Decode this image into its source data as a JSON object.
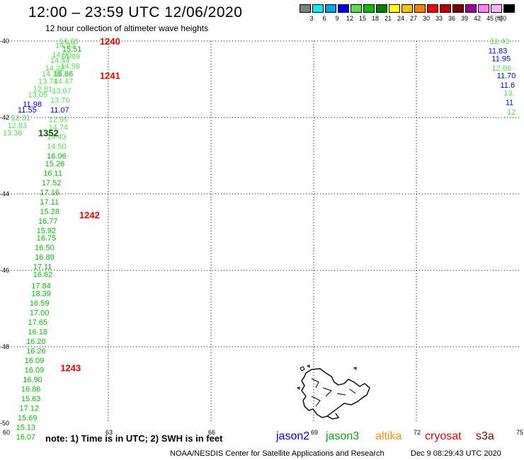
{
  "header": {
    "title": "12:00 – 23:59 UTC 12/06/2020",
    "subtitle": "12 hour collection of altimeter wave heights"
  },
  "legend": {
    "unit": "(ft)",
    "items": [
      {
        "color": "#808080",
        "label": "3"
      },
      {
        "color": "#00f0f0",
        "label": "6"
      },
      {
        "color": "#00a0ff",
        "label": "9"
      },
      {
        "color": "#0000e0",
        "label": "12"
      },
      {
        "color": "#50e050",
        "label": "15"
      },
      {
        "color": "#00c000",
        "label": "18"
      },
      {
        "color": "#008000",
        "label": "21"
      },
      {
        "color": "#ffff00",
        "label": "24"
      },
      {
        "color": "#ffc000",
        "label": "27"
      },
      {
        "color": "#ff8000",
        "label": "30"
      },
      {
        "color": "#ff0000",
        "label": "33"
      },
      {
        "color": "#c00000",
        "label": "36"
      },
      {
        "color": "#800000",
        "label": "39"
      },
      {
        "color": "#a000a0",
        "label": "42"
      },
      {
        "color": "#ff80ff",
        "label": "45"
      },
      {
        "color": "#ffb0ff",
        "label": "70"
      },
      {
        "color": "#000000",
        "label": ""
      }
    ]
  },
  "chart_data": {
    "type": "scatter",
    "lon_ticks": [
      60,
      63,
      66,
      69,
      72,
      75
    ],
    "lat_ticks": [
      -40,
      -42,
      -44,
      -46,
      -48,
      -50
    ],
    "lon_range": [
      60,
      75
    ],
    "lat_range": [
      -50,
      -40
    ],
    "time_labels": [
      {
        "text": "1240",
        "lon": 62.75,
        "lat": -40.0,
        "color": "#ee0000"
      },
      {
        "text": "1241",
        "lon": 62.75,
        "lat": -40.9,
        "color": "#ee0000"
      },
      {
        "text": "1242",
        "lon": 62.15,
        "lat": -44.55,
        "color": "#ee0000"
      },
      {
        "text": "1243",
        "lon": 61.6,
        "lat": -48.55,
        "color": "#ee0000"
      },
      {
        "text": "1352",
        "lon": 60.95,
        "lat": -42.4,
        "color": "#006000"
      }
    ],
    "series": [
      {
        "name": "jason3",
        "points": [
          {
            "lon": 61.8,
            "lat": -40.0,
            "v": "14.78",
            "c": "#50e050"
          },
          {
            "lon": 61.7,
            "lat": -40.1,
            "v": "14.93",
            "c": "#50e050"
          },
          {
            "lon": 61.9,
            "lat": -40.2,
            "v": "15.51",
            "c": "#00c000"
          },
          {
            "lon": 61.6,
            "lat": -40.35,
            "v": "14.90",
            "c": "#50e050"
          },
          {
            "lon": 61.85,
            "lat": -40.4,
            "v": "14.89",
            "c": "#50e050"
          },
          {
            "lon": 61.55,
            "lat": -40.5,
            "v": "14.44",
            "c": "#50e050"
          },
          {
            "lon": 61.85,
            "lat": -40.65,
            "v": "14.98",
            "c": "#50e050"
          },
          {
            "lon": 61.4,
            "lat": -40.7,
            "v": "14.22",
            "c": "#50e050"
          },
          {
            "lon": 61.65,
            "lat": -40.85,
            "v": "16.86",
            "c": "#00c000"
          },
          {
            "lon": 61.3,
            "lat": -40.85,
            "v": "14.10",
            "c": "#50e050"
          },
          {
            "lon": 61.2,
            "lat": -41.05,
            "v": "13.74",
            "c": "#50e050"
          },
          {
            "lon": 61.65,
            "lat": -41.05,
            "v": "14.47",
            "c": "#50e050"
          },
          {
            "lon": 61.05,
            "lat": -41.25,
            "v": "12.81",
            "c": "#50e050"
          },
          {
            "lon": 61.6,
            "lat": -41.3,
            "v": "13.07",
            "c": "#50e050"
          },
          {
            "lon": 60.9,
            "lat": -41.4,
            "v": "13.05",
            "c": "#50e050"
          },
          {
            "lon": 61.55,
            "lat": -41.55,
            "v": "13.70",
            "c": "#50e050"
          },
          {
            "lon": 60.75,
            "lat": -41.65,
            "v": "11.98",
            "c": "#0000e0"
          },
          {
            "lon": 61.55,
            "lat": -41.8,
            "v": "11.07",
            "c": "#0000e0"
          },
          {
            "lon": 60.6,
            "lat": -41.8,
            "v": "11.55",
            "c": "#0000e0"
          },
          {
            "lon": 60.4,
            "lat": -42.0,
            "v": "12.31",
            "c": "#50e050"
          },
          {
            "lon": 61.5,
            "lat": -42.05,
            "v": "12.95",
            "c": "#50e050"
          },
          {
            "lon": 60.3,
            "lat": -42.2,
            "v": "12.83",
            "c": "#50e050"
          },
          {
            "lon": 61.5,
            "lat": -42.25,
            "v": "14.74",
            "c": "#50e050"
          },
          {
            "lon": 60.15,
            "lat": -42.4,
            "v": "13.36",
            "c": "#50e050"
          },
          {
            "lon": 61.45,
            "lat": -42.5,
            "v": "14.43",
            "c": "#50e050"
          },
          {
            "lon": 61.45,
            "lat": -42.75,
            "v": "14.50",
            "c": "#50e050"
          },
          {
            "lon": 61.45,
            "lat": -43.0,
            "v": "16.06",
            "c": "#00c000"
          },
          {
            "lon": 61.4,
            "lat": -43.2,
            "v": "15.26",
            "c": "#00c000"
          },
          {
            "lon": 61.35,
            "lat": -43.45,
            "v": "16.11",
            "c": "#00c000"
          },
          {
            "lon": 61.3,
            "lat": -43.7,
            "v": "17.52",
            "c": "#00c000"
          },
          {
            "lon": 61.25,
            "lat": -43.95,
            "v": "17.16",
            "c": "#00c000"
          },
          {
            "lon": 61.25,
            "lat": -44.2,
            "v": "17.11",
            "c": "#00c000"
          },
          {
            "lon": 61.25,
            "lat": -44.45,
            "v": "15.28",
            "c": "#00c000"
          },
          {
            "lon": 61.2,
            "lat": -44.7,
            "v": "16.77",
            "c": "#00c000"
          },
          {
            "lon": 61.15,
            "lat": -44.95,
            "v": "15.92",
            "c": "#00c000"
          },
          {
            "lon": 61.15,
            "lat": -45.15,
            "v": "16.75",
            "c": "#00c000"
          },
          {
            "lon": 61.1,
            "lat": -45.4,
            "v": "16.50",
            "c": "#00c000"
          },
          {
            "lon": 61.1,
            "lat": -45.65,
            "v": "16.89",
            "c": "#00c000"
          },
          {
            "lon": 61.05,
            "lat": -45.9,
            "v": "17.11",
            "c": "#00c000"
          },
          {
            "lon": 61.05,
            "lat": -46.1,
            "v": "16.62",
            "c": "#00c000"
          },
          {
            "lon": 61.0,
            "lat": -46.4,
            "v": "17.84",
            "c": "#00c000"
          },
          {
            "lon": 61.0,
            "lat": -46.6,
            "v": "18.39",
            "c": "#00c000"
          },
          {
            "lon": 60.95,
            "lat": -46.85,
            "v": "16.59",
            "c": "#00c000"
          },
          {
            "lon": 60.95,
            "lat": -47.1,
            "v": "17.00",
            "c": "#00c000"
          },
          {
            "lon": 60.9,
            "lat": -47.35,
            "v": "17.65",
            "c": "#00c000"
          },
          {
            "lon": 60.9,
            "lat": -47.6,
            "v": "16.18",
            "c": "#00c000"
          },
          {
            "lon": 60.85,
            "lat": -47.85,
            "v": "16.20",
            "c": "#00c000"
          },
          {
            "lon": 60.85,
            "lat": -48.1,
            "v": "16.26",
            "c": "#00c000"
          },
          {
            "lon": 60.8,
            "lat": -48.35,
            "v": "16.09",
            "c": "#00c000"
          },
          {
            "lon": 60.8,
            "lat": -48.6,
            "v": "16.09",
            "c": "#00c000"
          },
          {
            "lon": 60.75,
            "lat": -48.85,
            "v": "16.90",
            "c": "#00c000"
          },
          {
            "lon": 60.7,
            "lat": -49.1,
            "v": "16.86",
            "c": "#00c000"
          },
          {
            "lon": 60.7,
            "lat": -49.35,
            "v": "15.63",
            "c": "#00c000"
          },
          {
            "lon": 60.65,
            "lat": -49.6,
            "v": "17.12",
            "c": "#00c000"
          },
          {
            "lon": 60.6,
            "lat": -49.85,
            "v": "15.69",
            "c": "#00c000"
          },
          {
            "lon": 60.55,
            "lat": -50.1,
            "v": "15.13",
            "c": "#00c000"
          },
          {
            "lon": 60.55,
            "lat": -50.35,
            "v": "16.07",
            "c": "#00c000"
          }
        ]
      },
      {
        "name": "jason2",
        "points": [
          {
            "lon": 74.4,
            "lat": -40.0,
            "v": "12.43",
            "c": "#50e050"
          },
          {
            "lon": 74.35,
            "lat": -40.25,
            "v": "11.83",
            "c": "#0000e0"
          },
          {
            "lon": 74.45,
            "lat": -40.45,
            "v": "11.95",
            "c": "#0000e0"
          },
          {
            "lon": 74.45,
            "lat": -40.7,
            "v": "12.86",
            "c": "#50e050"
          },
          {
            "lon": 74.6,
            "lat": -40.9,
            "v": "11.70",
            "c": "#0000e0"
          },
          {
            "lon": 74.7,
            "lat": -41.15,
            "v": "11.6",
            "c": "#0000e0"
          },
          {
            "lon": 74.8,
            "lat": -41.35,
            "v": "13.",
            "c": "#50e050"
          },
          {
            "lon": 74.85,
            "lat": -41.6,
            "v": "11",
            "c": "#0000e0"
          },
          {
            "lon": 74.9,
            "lat": -41.85,
            "v": "12",
            "c": "#50e050"
          }
        ]
      }
    ]
  },
  "footer": {
    "note": "note: 1) Time is in UTC; 2) SWH is in feet",
    "satellites": [
      {
        "name": "jason2",
        "color": "#0000e0"
      },
      {
        "name": "jason3",
        "color": "#00b000"
      },
      {
        "name": "altika",
        "color": "#ff9000"
      },
      {
        "name": "cryosat",
        "color": "#e00000"
      },
      {
        "name": "s3a",
        "color": "#800000"
      }
    ],
    "credit": "NOAA/NESDIS Center for Satellite Applications and Research",
    "timestamp": "Dec  9 08:29:43 UTC 2020"
  }
}
